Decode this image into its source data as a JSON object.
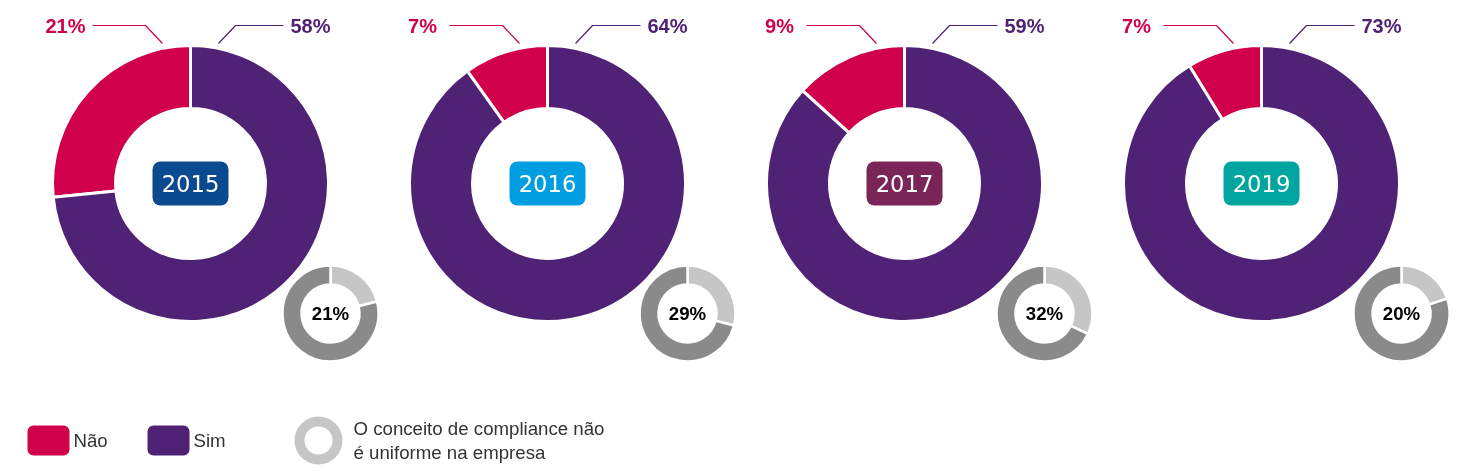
{
  "chart_data": [
    {
      "type": "donut",
      "categories": [
        "Não",
        "Sim"
      ],
      "colors": [
        "#d1004b",
        "#4f2275"
      ],
      "legend": "bottom left",
      "series": [
        {
          "name": "2015",
          "values": [
            21,
            58
          ],
          "value_labels": [
            "21%",
            "58%"
          ]
        },
        {
          "name": "2016",
          "values": [
            7,
            64
          ],
          "value_labels": [
            "7%",
            "64%"
          ]
        },
        {
          "name": "2017",
          "values": [
            9,
            59
          ],
          "value_labels": [
            "9%",
            "59%"
          ]
        },
        {
          "name": "2019",
          "values": [
            7,
            73
          ],
          "value_labels": [
            "7%",
            "73%"
          ]
        }
      ]
    },
    {
      "type": "donut",
      "categories": [
        "O conceito de compliance não é uniforme na empresa",
        null
      ],
      "colors": [
        "#c6c6c6",
        "#8a8a8a"
      ],
      "legend": "bottom left",
      "series": [
        {
          "values": [
            21,
            79
          ],
          "value_labels": [
            "21%",
            null
          ]
        },
        {
          "values": [
            29,
            71
          ],
          "value_labels": [
            "29%",
            null
          ]
        },
        {
          "values": [
            32,
            68
          ],
          "value_labels": [
            "32%",
            null
          ]
        },
        {
          "values": [
            20,
            80
          ],
          "value_labels": [
            "20%",
            null
          ]
        }
      ]
    }
  ]
}
